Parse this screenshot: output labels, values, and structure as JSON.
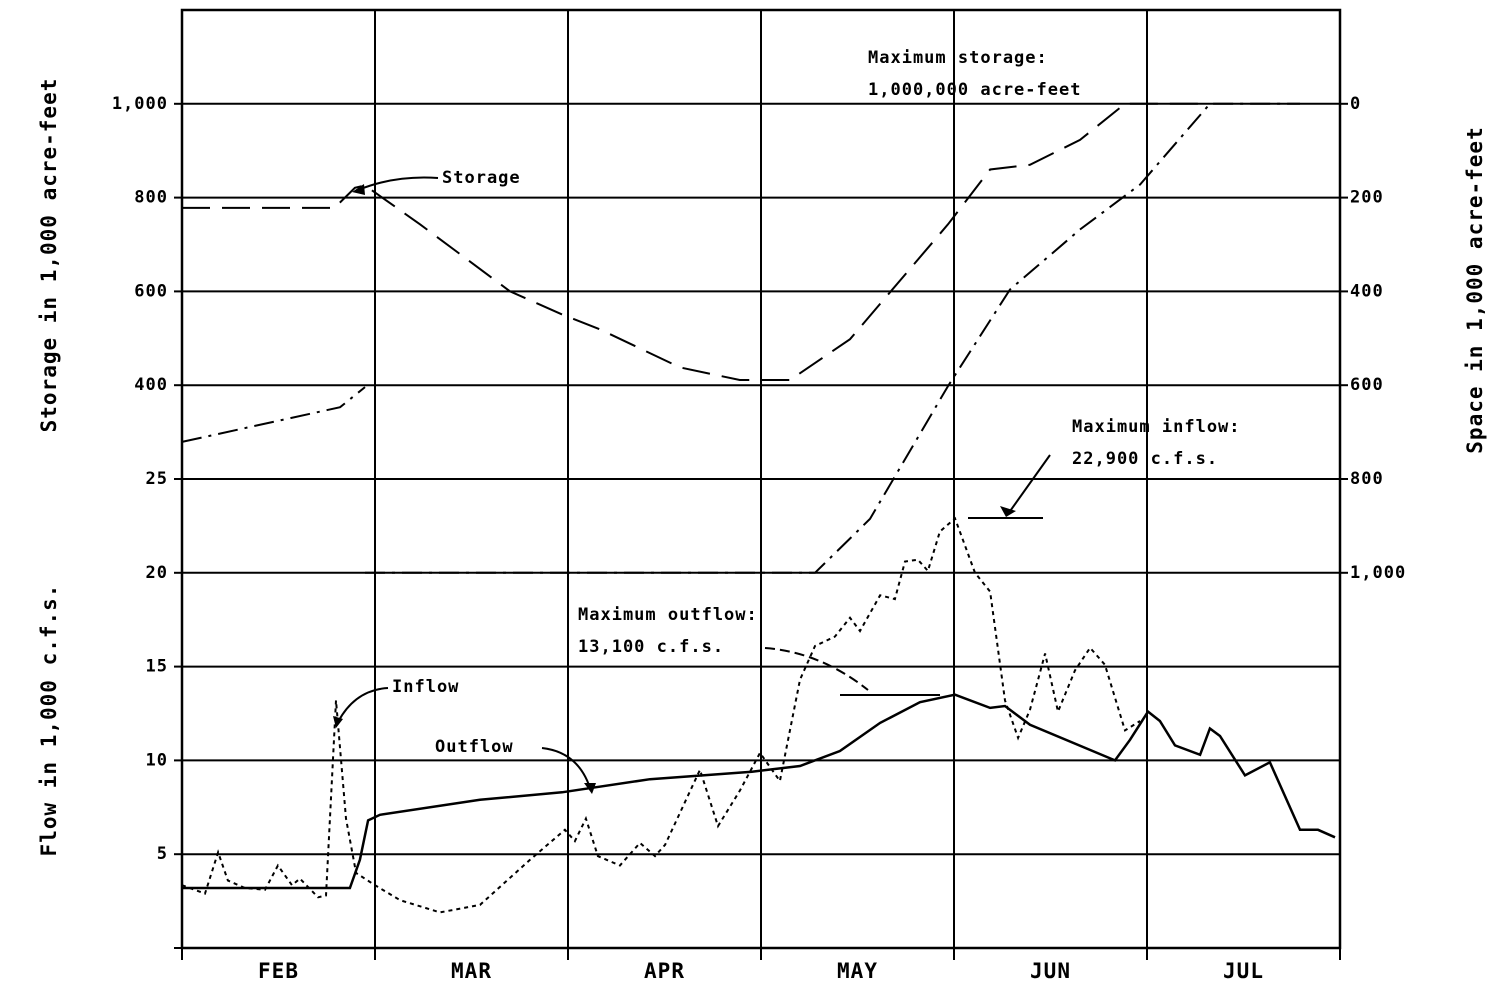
{
  "chart_data": {
    "type": "line",
    "ylabel": "Flow in 1,000 c.f.s.",
    "y2label": "Storage in 1,000 acre-feet",
    "y3label": "Space in 1,000 acre-feet",
    "categories": [
      "FEB",
      "MAR",
      "APR",
      "MAY",
      "JUN",
      "JUL"
    ],
    "xlim": [
      0,
      6
    ],
    "xticks": [
      0,
      1,
      2,
      3,
      4,
      5,
      6
    ],
    "ylim": [
      0,
      50
    ],
    "yticks": [
      0,
      5,
      10,
      15,
      20,
      25
    ],
    "y2lim": [
      -800,
      1200
    ],
    "y2ticks": [
      400,
      600,
      800,
      {
        "value": 1000,
        "label": "1,000"
      }
    ],
    "y3lim": [
      1800,
      -200
    ],
    "y3ticks": [
      0,
      200,
      400,
      600,
      800,
      {
        "value": 1000,
        "label": "1,000"
      }
    ],
    "grid": true,
    "series": [
      {
        "name": "Storage",
        "axis": "y2",
        "style": "dashed",
        "color": "#000000",
        "x": [
          0,
          0.79,
          0.896,
          0.948,
          1.233,
          1.7,
          1.969,
          2.166,
          2.58,
          2.89,
          3.15,
          3.461,
          3.969,
          4.187,
          4.394,
          4.653,
          4.886,
          5.275
        ],
        "values": [
          778,
          778,
          821,
          826,
          743,
          600,
          551,
          519,
          438,
          411,
          411,
          498,
          743,
          860,
          870,
          923,
          1000,
          1000
        ]
      },
      {
        "axis": "y3",
        "style": "dashdot",
        "color": "#000000",
        "x": [
          0,
          0.819,
          0.948,
          0.948,
          0.948,
          3.28,
          3.565,
          3.969,
          4.29,
          4.653,
          4.964,
          5.326,
          5.793
        ],
        "values": [
          721,
          647,
          604,
          null,
          1000,
          1000,
          885,
          602,
          396,
          268,
          172,
          0,
          0
        ]
      },
      {
        "name": "Inflow",
        "axis": "y",
        "style": "dotted",
        "color": "#000000",
        "x": [
          0,
          0.119,
          0.187,
          0.238,
          0.326,
          0.43,
          0.497,
          0.57,
          0.611,
          0.705,
          0.746,
          0.798,
          0.85,
          0.902,
          1.0,
          1.13,
          1.337,
          1.544,
          1.803,
          1.984,
          2.036,
          2.093,
          2.155,
          2.269,
          2.373,
          2.451,
          2.503,
          2.684,
          2.777,
          2.891,
          2.995,
          3.098,
          3.202,
          3.28,
          3.383,
          3.461,
          3.513,
          3.617,
          3.694,
          3.746,
          3.813,
          3.865,
          3.927,
          4.005,
          4.109,
          4.187,
          4.264,
          4.332,
          4.394,
          4.472,
          4.539,
          4.627,
          4.705,
          4.782,
          4.886,
          4.964
        ],
        "values": [
          3.35,
          2.9,
          5.1,
          3.6,
          3.2,
          3.1,
          4.4,
          3.35,
          3.7,
          2.7,
          2.8,
          13.2,
          6.9,
          4.0,
          3.35,
          2.55,
          1.9,
          2.3,
          4.7,
          6.3,
          5.7,
          6.9,
          4.9,
          4.4,
          5.6,
          4.9,
          5.5,
          9.5,
          6.5,
          8.4,
          10.4,
          8.9,
          14.3,
          16.1,
          16.6,
          17.6,
          16.9,
          18.8,
          18.6,
          20.6,
          20.7,
          20.1,
          22.2,
          22.9,
          20.0,
          19.0,
          13.2,
          11.2,
          12.7,
          15.7,
          12.6,
          14.8,
          16.0,
          15.1,
          11.6,
          12.1
        ]
      },
      {
        "name": "Outflow",
        "axis": "y",
        "style": "solid",
        "color": "#000000",
        "x": [
          0,
          0.87,
          0.922,
          0.964,
          1.026,
          1.544,
          1.969,
          2.425,
          2.953,
          3.202,
          3.409,
          3.617,
          3.824,
          4.005,
          4.187,
          4.264,
          4.394,
          4.834,
          4.912,
          5.005,
          5.067,
          5.145,
          5.275,
          5.326,
          5.378,
          5.508,
          5.637,
          5.793,
          5.886,
          5.974
        ],
        "values": [
          3.2,
          3.2,
          4.7,
          6.8,
          7.1,
          7.9,
          8.3,
          9.0,
          9.4,
          9.7,
          10.5,
          12.0,
          13.1,
          13.5,
          12.8,
          12.9,
          11.9,
          10.0,
          11.1,
          12.6,
          12.1,
          10.8,
          10.3,
          11.7,
          11.3,
          9.2,
          9.9,
          6.3,
          6.3,
          5.9
        ]
      }
    ],
    "annotations": [
      {
        "lines": [
          "Maximum storage:",
          "1,000,000 acre-feet"
        ]
      },
      {
        "lines": [
          "Maximum inflow:",
          "22,900  c.f.s."
        ]
      },
      {
        "lines": [
          "Maximum outflow:",
          "13,100  c.f.s."
        ]
      }
    ]
  }
}
